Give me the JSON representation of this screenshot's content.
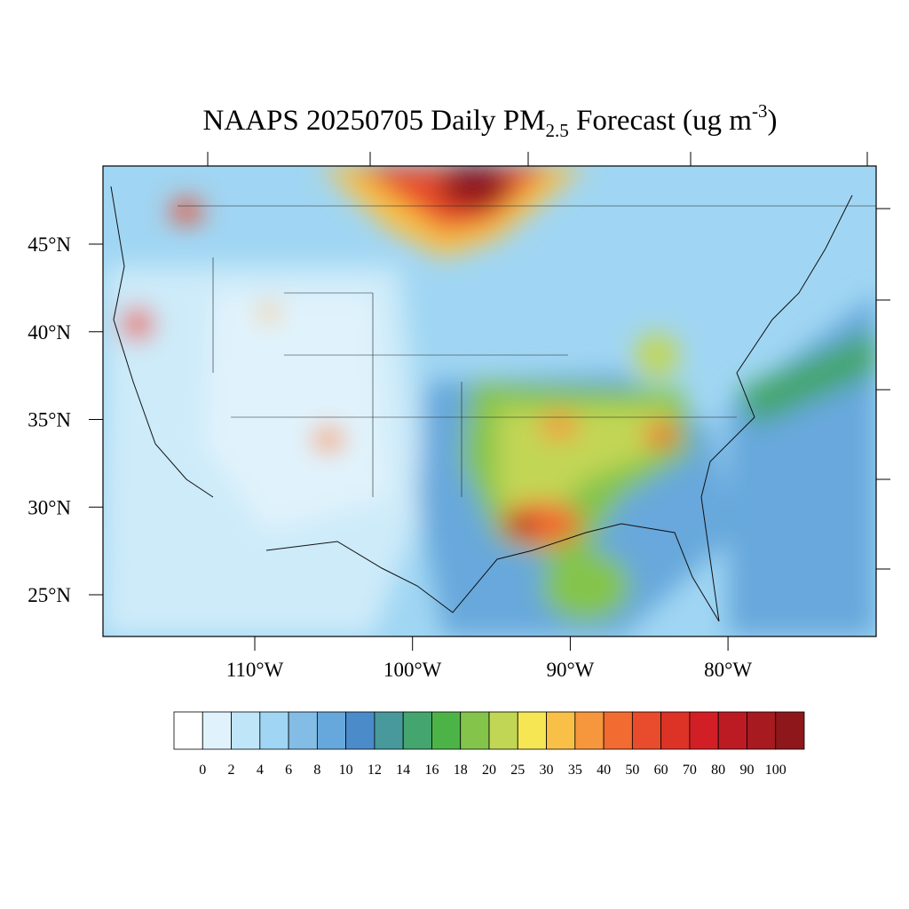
{
  "map": {
    "title": {
      "main": "NAAPS 20250705 Daily PM",
      "sub": "2.5",
      "middle": " Forecast (ug m",
      "sup": "-3",
      "end": ")"
    },
    "lat_ticks": [
      {
        "value": 45,
        "label": "45°N"
      },
      {
        "value": 40,
        "label": "40°N"
      },
      {
        "value": 35,
        "label": "35°N"
      },
      {
        "value": 30,
        "label": "30°N"
      },
      {
        "value": 25,
        "label": "25°N"
      }
    ],
    "lon_ticks": [
      {
        "value": -110,
        "label": "110°W"
      },
      {
        "value": -100,
        "label": "100°W"
      },
      {
        "value": -90,
        "label": "90°W"
      },
      {
        "value": -80,
        "label": "80°W"
      }
    ],
    "colorbar": {
      "colors": [
        "#ffffff",
        "#e0f3fc",
        "#bfe6f8",
        "#a0d6f3",
        "#83bde6",
        "#67a8dc",
        "#4b8bc9",
        "#47999c",
        "#44a56e",
        "#4cb447",
        "#84c44b",
        "#c2d655",
        "#f6e653",
        "#f8c046",
        "#f6973d",
        "#f26b30",
        "#e84c2c",
        "#dd3327",
        "#d21f26",
        "#bc1b24",
        "#a71a20",
        "#8e171b"
      ],
      "labels": [
        0,
        2,
        4,
        6,
        8,
        10,
        12,
        14,
        16,
        18,
        20,
        25,
        30,
        35,
        40,
        50,
        60,
        70,
        80,
        90,
        100
      ]
    }
  }
}
